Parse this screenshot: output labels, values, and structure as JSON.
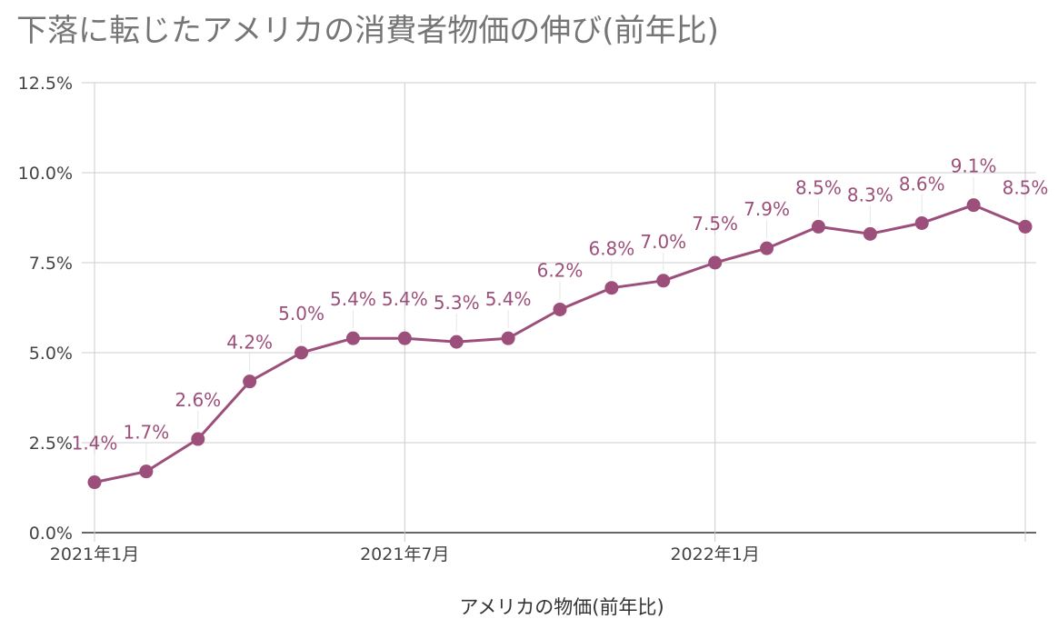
{
  "chart_data": {
    "type": "line",
    "title": "下落に転じたアメリカの消費者物価の伸び(前年比)",
    "xlabel": "アメリカの物価(前年比)",
    "ylabel": "",
    "x_labels": [
      "2021年1月",
      "2021年7月",
      "2022年1月"
    ],
    "y_ticks": [
      "0.0%",
      "2.5%",
      "5.0%",
      "7.5%",
      "10.0%",
      "12.5%"
    ],
    "ylim": [
      0,
      12.5
    ],
    "grid": true,
    "categories": [
      "2021-01",
      "2021-02",
      "2021-03",
      "2021-04",
      "2021-05",
      "2021-06",
      "2021-07",
      "2021-08",
      "2021-09",
      "2021-10",
      "2021-11",
      "2021-12",
      "2022-01",
      "2022-02",
      "2022-03",
      "2022-04",
      "2022-05",
      "2022-06",
      "2022-07"
    ],
    "series": [
      {
        "name": "",
        "values": [
          1.4,
          1.7,
          2.6,
          4.2,
          5.0,
          5.4,
          5.4,
          5.3,
          5.4,
          6.2,
          6.8,
          7.0,
          7.5,
          7.9,
          8.5,
          8.3,
          8.6,
          9.1,
          8.5
        ],
        "data_labels": [
          "1.4%",
          "1.7%",
          "2.6%",
          "4.2%",
          "5.0%",
          "5.4%",
          "5.4%",
          "5.3%",
          "5.4%",
          "6.2%",
          "6.8%",
          "7.0%",
          "7.5%",
          "7.9%",
          "8.5%",
          "8.3%",
          "8.6%",
          "9.1%",
          "8.5%"
        ],
        "color": "#9C4F7A"
      }
    ]
  }
}
